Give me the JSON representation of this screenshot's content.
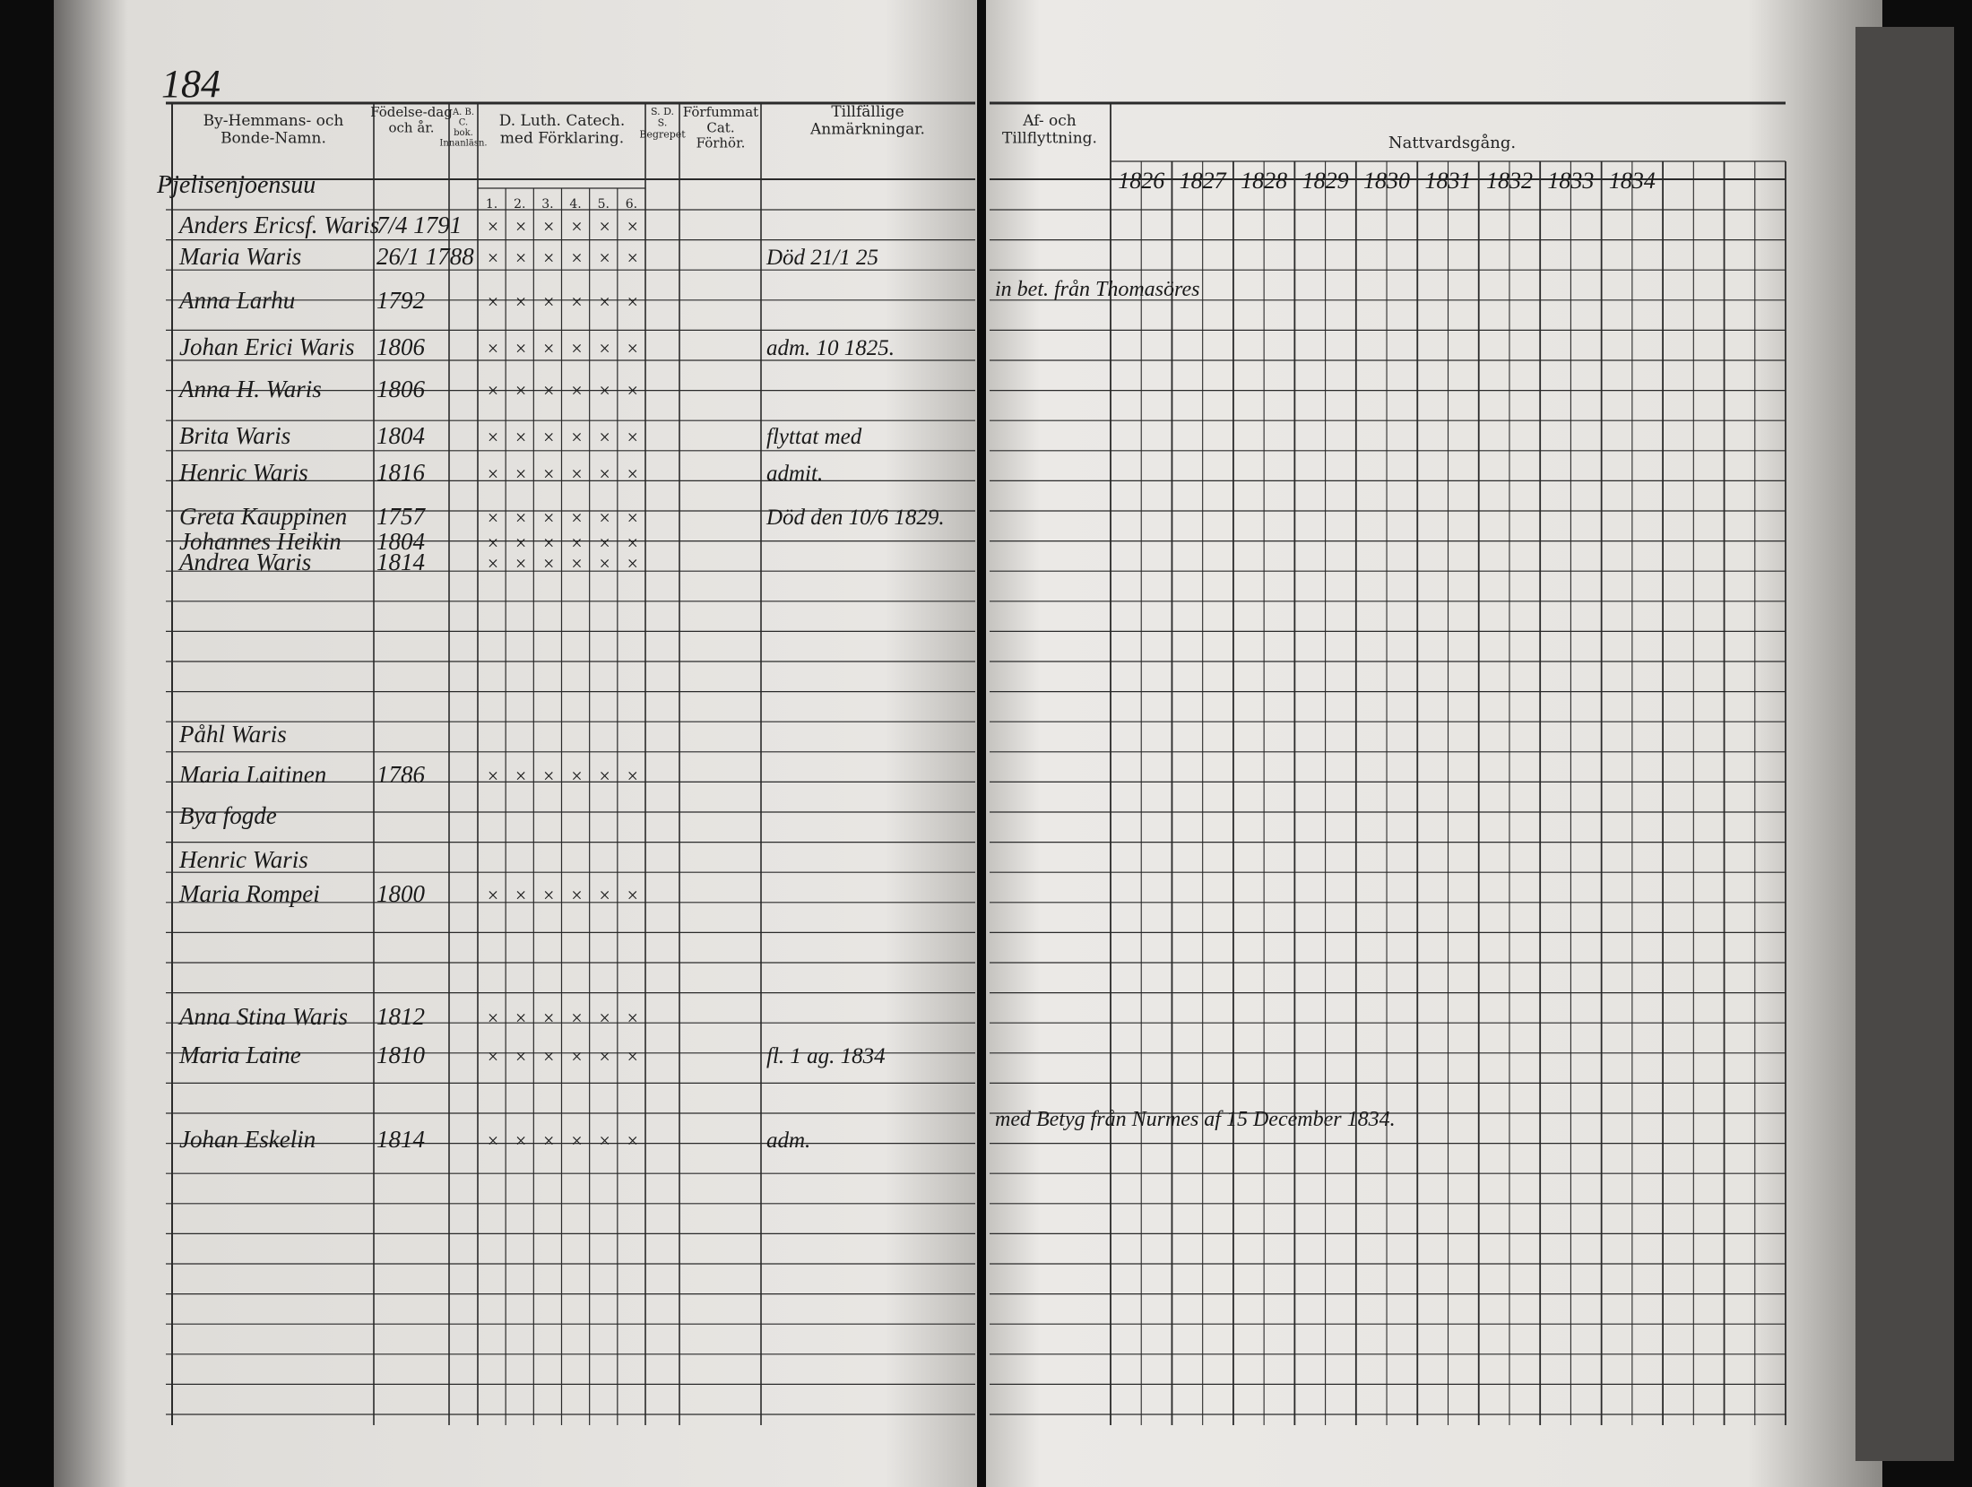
{
  "page_number": "184",
  "left_page": {
    "headers": {
      "name": "By-Hemmans- och Bonde-Namn.",
      "birth": "Födelse-dag och år.",
      "abc": "A. B. C. bok. Innanläsn.",
      "catechism": "D. Luth. Catech. med Förklaring.",
      "sds": "S. D. S. Begrepet",
      "missed": "Förfummat Cat. Förhör.",
      "remarks": "Tillfällige Anmärkningar."
    },
    "catechism_columns": [
      "1.",
      "2.",
      "3.",
      "4.",
      "5.",
      "6."
    ],
    "village": "Pjelisenjoensuu",
    "rows": [
      {
        "name": "Anders Ericsf. Waris",
        "birth": "7/4 1791"
      },
      {
        "name": "Maria Waris",
        "birth": "26/1 1788",
        "remark": "Död 21/1 25"
      },
      {
        "name": "Anna Larhu",
        "birth": "1792"
      },
      {
        "name": "Johan Erici Waris",
        "birth": "1806",
        "remark": "adm. 10 1825."
      },
      {
        "name": "Anna H. Waris",
        "birth": "1806"
      },
      {
        "name": "Brita Waris",
        "birth": "1804",
        "remark": "flyttat med"
      },
      {
        "name": "Henric Waris",
        "birth": "1816",
        "remark": "admit."
      },
      {
        "name": "Greta Kauppinen",
        "birth": "1757",
        "remark": "Död den 10/6 1829."
      },
      {
        "name": "Johannes Heikin",
        "birth": "1804"
      },
      {
        "name": "Andrea Waris",
        "birth": "1814"
      },
      {
        "name": "Påhl Waris"
      },
      {
        "name": "Maria Laitinen",
        "birth": "1786"
      },
      {
        "name": "Bya fogde"
      },
      {
        "name": "Henric Waris"
      },
      {
        "name": "Maria Rompei",
        "birth": "1800"
      },
      {
        "name": "Anna Stina Waris",
        "birth": "1812"
      },
      {
        "name": "Maria Laine",
        "birth": "1810",
        "remark": "fl. 1 ag. 1834"
      },
      {
        "name": "Johan Eskelin",
        "birth": "1814",
        "remark": "adm."
      }
    ]
  },
  "right_page": {
    "headers": {
      "moving": "Af- och Tillflyttning.",
      "communion": "Nattvardsgång."
    },
    "years": [
      "1826",
      "1827",
      "1828",
      "1829",
      "1830",
      "1831",
      "1832",
      "1833",
      "1834"
    ],
    "moves": [
      "in bet. från Thomasöres",
      "med Betyg från Nurmes af 15 December 1834."
    ]
  }
}
